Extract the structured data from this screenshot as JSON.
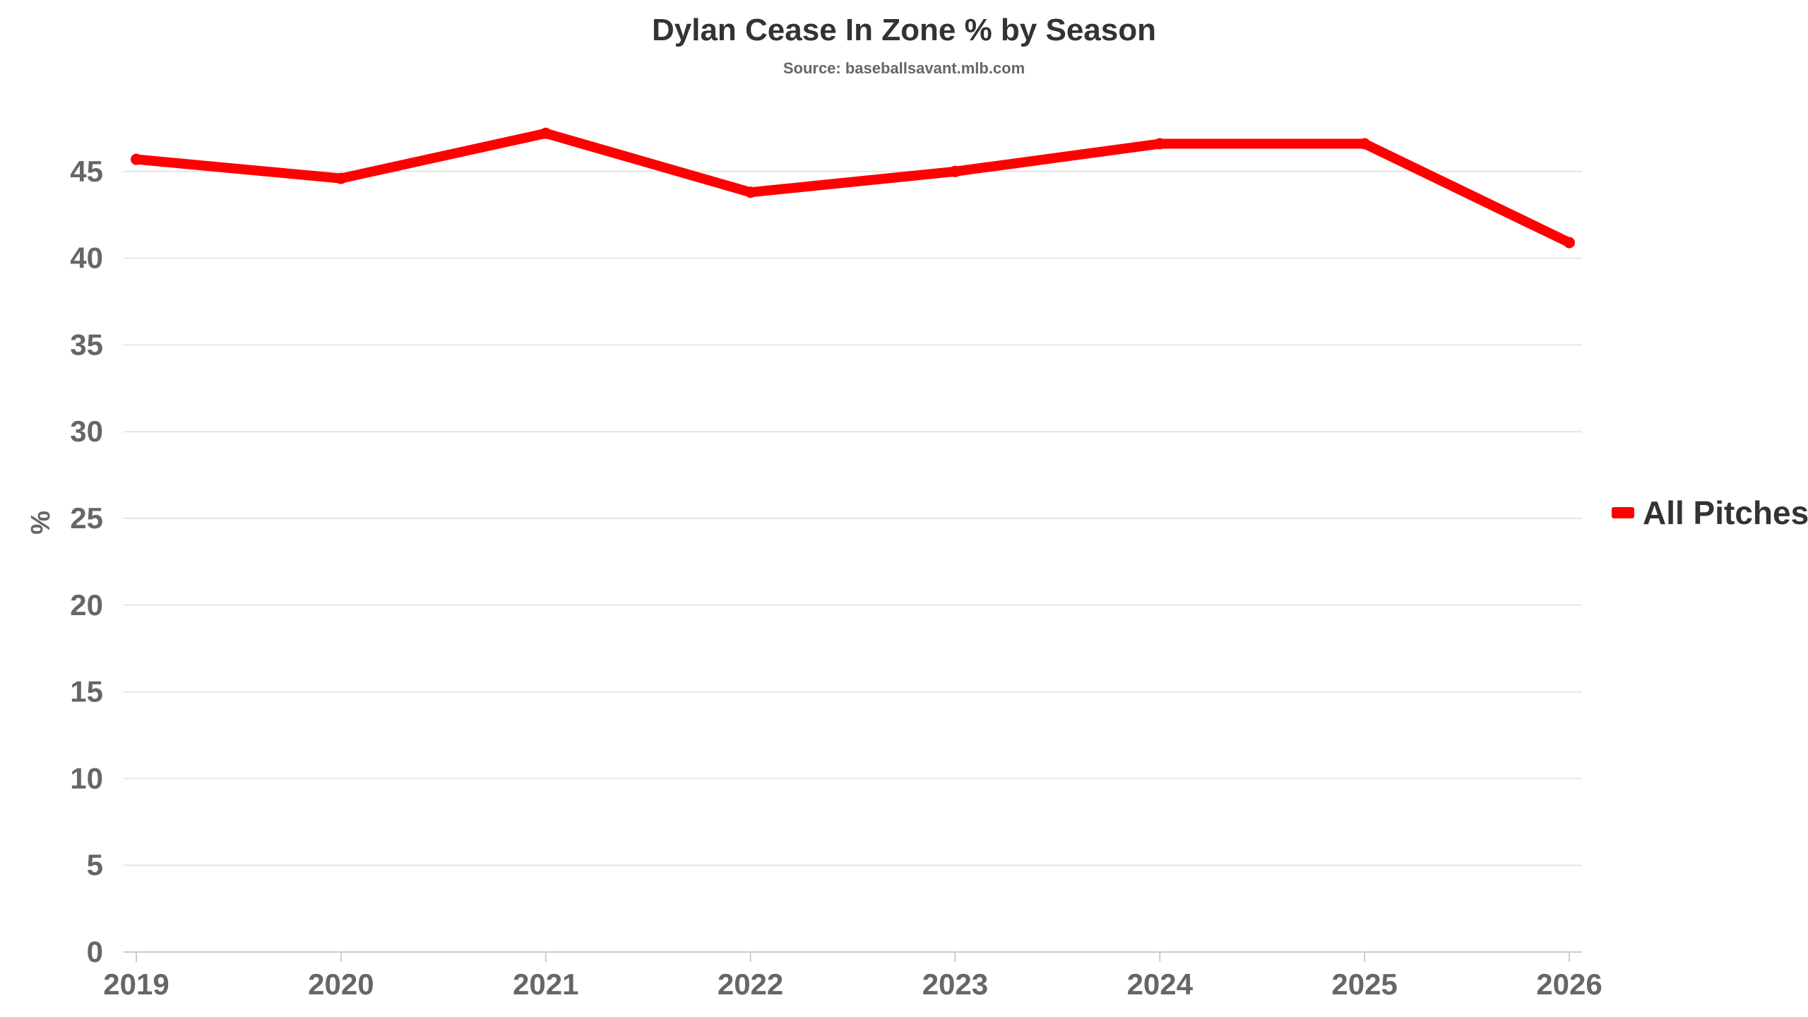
{
  "chart_data": {
    "type": "line",
    "title": "Dylan Cease In Zone % by Season",
    "subtitle": "Source: baseballsavant.mlb.com",
    "xlabel": "",
    "ylabel": "%",
    "categories": [
      "2019",
      "2020",
      "2021",
      "2022",
      "2023",
      "2024",
      "2025",
      "2026"
    ],
    "series": [
      {
        "name": "All Pitches",
        "color": "#ff0000",
        "values": [
          45.7,
          44.6,
          47.2,
          43.8,
          45.0,
          46.6,
          46.6,
          40.9
        ]
      }
    ],
    "ylim": [
      0,
      50
    ],
    "yticks": [
      0,
      5,
      10,
      15,
      20,
      25,
      30,
      35,
      40,
      45
    ],
    "grid": true,
    "legend_position": "right"
  }
}
